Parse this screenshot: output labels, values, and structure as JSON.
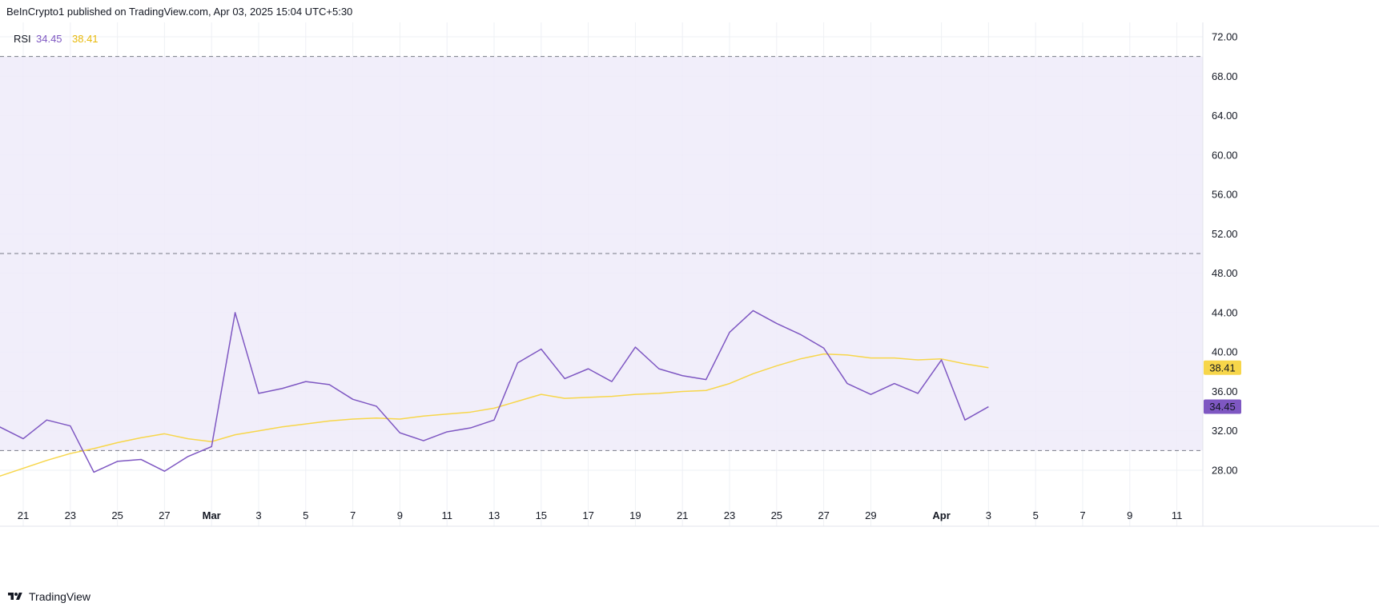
{
  "header": {
    "publisher_line": "BeInCrypto1 published on TradingView.com, Apr 03, 2025 15:04 UTC+5:30"
  },
  "footer": {
    "brand": "TradingView"
  },
  "colors": {
    "rsi": "#7E57C2",
    "rsi_ma": "#F7D64A",
    "band_fill": "#EFEBF9",
    "grid": "#EEF0F4"
  },
  "chart_data": {
    "type": "line",
    "indicator": "RSI",
    "legend": {
      "label": "RSI",
      "values": [
        "34.45",
        "38.41"
      ]
    },
    "x_axis": {
      "range_days": [
        0,
        52
      ],
      "tick_labels": [
        {
          "day": 1,
          "label": "21"
        },
        {
          "day": 3,
          "label": "23"
        },
        {
          "day": 5,
          "label": "25"
        },
        {
          "day": 7,
          "label": "27"
        },
        {
          "day": 9,
          "label": "Mar"
        },
        {
          "day": 11,
          "label": "3"
        },
        {
          "day": 13,
          "label": "5"
        },
        {
          "day": 15,
          "label": "7"
        },
        {
          "day": 17,
          "label": "9"
        },
        {
          "day": 19,
          "label": "11"
        },
        {
          "day": 21,
          "label": "13"
        },
        {
          "day": 23,
          "label": "15"
        },
        {
          "day": 25,
          "label": "17"
        },
        {
          "day": 27,
          "label": "19"
        },
        {
          "day": 29,
          "label": "21"
        },
        {
          "day": 31,
          "label": "23"
        },
        {
          "day": 33,
          "label": "25"
        },
        {
          "day": 35,
          "label": "27"
        },
        {
          "day": 37,
          "label": "29"
        },
        {
          "day": 40,
          "label": "Apr"
        },
        {
          "day": 42,
          "label": "3"
        },
        {
          "day": 44,
          "label": "5"
        },
        {
          "day": 46,
          "label": "7"
        },
        {
          "day": 48,
          "label": "9"
        },
        {
          "day": 50,
          "label": "11"
        }
      ]
    },
    "y_axis": {
      "ylim": [
        24.4,
        74
      ],
      "tick_labels": [
        "28.00",
        "32.00",
        "36.00",
        "40.00",
        "44.00",
        "48.00",
        "52.00",
        "56.00",
        "60.00",
        "64.00",
        "68.00",
        "72.00"
      ],
      "tick_values": [
        28,
        32,
        36,
        40,
        44,
        48,
        52,
        56,
        60,
        64,
        68,
        72
      ]
    },
    "bands": {
      "upper": 70,
      "middle": 50,
      "lower": 30
    },
    "series": [
      {
        "key": "rsi",
        "color": "#7E57C2",
        "values": [
          32.4,
          31.2,
          33.1,
          32.5,
          27.8,
          28.9,
          29.1,
          27.9,
          29.4,
          30.4,
          44.0,
          35.8,
          36.3,
          37.0,
          36.7,
          35.2,
          34.5,
          31.8,
          31.0,
          31.9,
          32.3,
          33.1,
          38.9,
          40.3,
          37.3,
          38.3,
          37.0,
          40.5,
          38.3,
          37.6,
          37.2,
          42.0,
          44.2,
          42.9,
          41.8,
          40.4,
          36.8,
          35.7,
          36.8,
          35.8,
          39.2,
          33.1,
          34.45
        ]
      },
      {
        "key": "rsi_ma",
        "color": "#F7D64A",
        "values": [
          27.4,
          28.2,
          29.0,
          29.7,
          30.2,
          30.8,
          31.3,
          31.7,
          31.2,
          30.9,
          31.6,
          32.0,
          32.4,
          32.7,
          33.0,
          33.2,
          33.3,
          33.2,
          33.5,
          33.7,
          33.9,
          34.3,
          35.0,
          35.7,
          35.3,
          35.4,
          35.5,
          35.7,
          35.8,
          36.0,
          36.1,
          36.8,
          37.8,
          38.6,
          39.3,
          39.8,
          39.7,
          39.4,
          39.4,
          39.2,
          39.3,
          38.8,
          38.41
        ]
      }
    ],
    "last_value_badges": [
      {
        "series": "rsi_ma",
        "value": 38.41,
        "label": "38.41"
      },
      {
        "series": "rsi",
        "value": 34.45,
        "label": "34.45"
      }
    ]
  }
}
